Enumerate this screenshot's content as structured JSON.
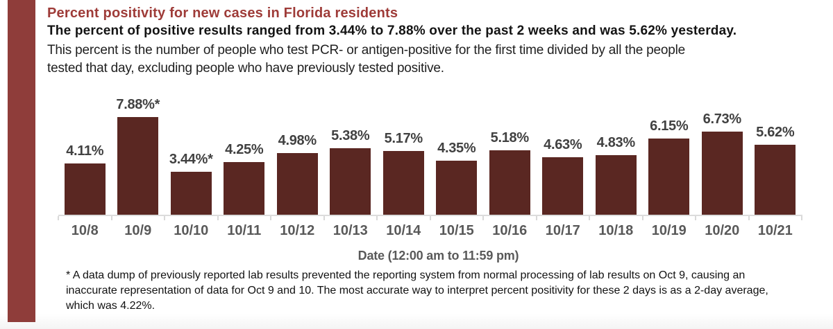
{
  "title": "Percent positivity for new cases in Florida residents",
  "subtitle": "The percent of positive results ranged from 3.44% to 7.88% over the past 2 weeks and was 5.62% yesterday.",
  "description_lines": [
    "This percent is the number of people who test PCR- or antigen-positive for the first time divided by all the people",
    "tested that day, excluding people who have previously tested positive."
  ],
  "footnote_lines": [
    "* A data dump of previously reported lab results prevented the reporting system from normal processing of lab results on Oct 9, causing an",
    "inaccurate representation of data for Oct 9 and 10. The most accurate way to interpret percent positivity for these 2 days is as a 2-day average,",
    "which was 4.22%."
  ],
  "colors": {
    "accent_strip": "#8f3d3a",
    "title_text": "#9e3b38",
    "bar_fill": "#5a2722"
  },
  "chart_data": {
    "type": "bar",
    "title": "Percent positivity for new cases in Florida residents",
    "categories": [
      "10/8",
      "10/9",
      "10/10",
      "10/11",
      "10/12",
      "10/13",
      "10/14",
      "10/15",
      "10/16",
      "10/17",
      "10/18",
      "10/19",
      "10/20",
      "10/21"
    ],
    "values": [
      4.11,
      7.88,
      3.44,
      4.25,
      4.98,
      5.38,
      5.17,
      4.35,
      5.18,
      4.63,
      4.83,
      6.15,
      6.73,
      5.62
    ],
    "bar_labels": [
      "4.11%",
      "7.88%*",
      "3.44%*",
      "4.25%",
      "4.98%",
      "5.38%",
      "5.17%",
      "4.35%",
      "5.18%",
      "4.63%",
      "4.83%",
      "6.15%",
      "6.73%",
      "5.62%"
    ],
    "xlabel": "Date (12:00 am to 11:59 pm)",
    "ylabel": "",
    "ylim": [
      0,
      8.5
    ],
    "grid": false,
    "legend": false
  }
}
